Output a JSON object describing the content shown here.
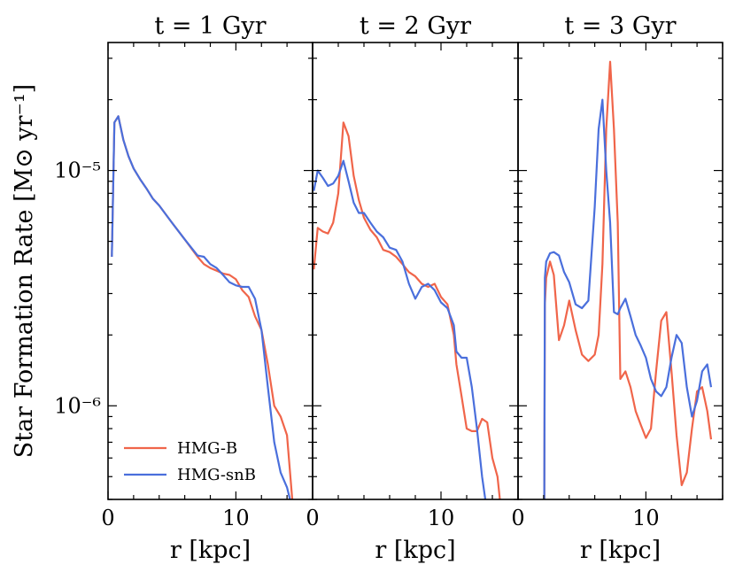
{
  "chart_data": {
    "type": "line",
    "ylabel": "Star Formation Rate [M⊙ yr⁻¹]",
    "ylim": [
      4e-07,
      3.5e-05
    ],
    "yscale": "log",
    "ytick_labels": [
      "10⁻⁶",
      "10⁻⁵"
    ],
    "series_styles": [
      {
        "name": "HMG-B",
        "color": "#f0654a"
      },
      {
        "name": "HMG-snB",
        "color": "#4a6fdc"
      }
    ],
    "legend": {
      "location": "lower-left",
      "entries": [
        "HMG-B",
        "HMG-snB"
      ]
    },
    "panels": [
      {
        "title": "t = 1 Gyr",
        "xlabel": "r [kpc]",
        "xlim": [
          0,
          16
        ],
        "xtick_labels": [
          "0",
          "10"
        ],
        "series": [
          {
            "name": "HMG-B",
            "x": [
              0.3,
              0.5,
              0.8,
              1.2,
              1.6,
              2,
              2.5,
              3,
              3.5,
              4,
              5,
              6,
              7,
              7.5,
              8,
              8.5,
              9,
              9.5,
              10,
              10.5,
              11,
              11.5,
              12,
              12.5,
              13,
              13.5,
              14,
              14.5
            ],
            "y": [
              4.3e-06,
              1.6e-05,
              1.7e-05,
              1.35e-05,
              1.15e-05,
              1.02e-05,
              9.2e-06,
              8.4e-06,
              7.6e-06,
              7.1e-06,
              6e-06,
              5.1e-06,
              4.3e-06,
              4e-06,
              3.85e-06,
              3.75e-06,
              3.65e-06,
              3.6e-06,
              3.45e-06,
              3.1e-06,
              2.9e-06,
              2.4e-06,
              2.1e-06,
              1.5e-06,
              1e-06,
              9e-07,
              7.5e-07,
              3.5e-07
            ]
          },
          {
            "name": "HMG-snB",
            "x": [
              0.3,
              0.5,
              0.8,
              1.2,
              1.6,
              2,
              2.5,
              3,
              3.5,
              4,
              5,
              6,
              7,
              7.5,
              8,
              8.5,
              9,
              9.5,
              10,
              10.5,
              11,
              11.5,
              12,
              12.5,
              13,
              13.5,
              14,
              14.5
            ],
            "y": [
              4.3e-06,
              1.6e-05,
              1.7e-05,
              1.35e-05,
              1.15e-05,
              1.02e-05,
              9.2e-06,
              8.4e-06,
              7.6e-06,
              7.1e-06,
              6e-06,
              5.1e-06,
              4.35e-06,
              4.3e-06,
              4e-06,
              3.85e-06,
              3.6e-06,
              3.35e-06,
              3.25e-06,
              3.2e-06,
              3.2e-06,
              2.85e-06,
              2.1e-06,
              1.2e-06,
              7e-07,
              5.2e-07,
              4.5e-07,
              3.5e-07
            ]
          }
        ]
      },
      {
        "title": "t = 2 Gyr",
        "xlabel": "r [kpc]",
        "xlim": [
          0,
          16
        ],
        "xtick_labels": [
          "0",
          "10"
        ],
        "series": [
          {
            "name": "HMG-B",
            "x": [
              0.1,
              0.4,
              0.8,
              1.2,
              1.6,
              2,
              2.4,
              2.8,
              3.2,
              3.6,
              4,
              4.5,
              5,
              5.5,
              6,
              6.5,
              7,
              7.5,
              8,
              8.5,
              9,
              9.5,
              10,
              10.5,
              11,
              11.2,
              11.6,
              12,
              12.4,
              12.8,
              13.2,
              13.6,
              14,
              14.4,
              14.7
            ],
            "y": [
              3.8e-06,
              5.7e-06,
              5.5e-06,
              5.4e-06,
              6e-06,
              8e-06,
              1.6e-05,
              1.4e-05,
              9.5e-06,
              7.5e-06,
              6.3e-06,
              5.6e-06,
              5.2e-06,
              4.6e-06,
              4.5e-06,
              4.3e-06,
              4e-06,
              3.7e-06,
              3.55e-06,
              3.3e-06,
              3.2e-06,
              3.3e-06,
              2.9e-06,
              2.7e-06,
              2e-06,
              1.5e-06,
              1.1e-06,
              8e-07,
              7.8e-07,
              7.8e-07,
              8.8e-07,
              8.5e-07,
              6e-07,
              5e-07,
              3.5e-07
            ]
          },
          {
            "name": "HMG-snB",
            "x": [
              0.1,
              0.4,
              0.8,
              1.2,
              1.6,
              2,
              2.4,
              2.8,
              3.2,
              3.6,
              4,
              4.5,
              5,
              5.5,
              6,
              6.5,
              7,
              7.5,
              8,
              8.5,
              9,
              9.5,
              10,
              10.5,
              11,
              11.2,
              11.6,
              12,
              12.4,
              12.8,
              13.2,
              13.6
            ],
            "y": [
              8.2e-06,
              1e-05,
              9.3e-06,
              8.6e-06,
              8.8e-06,
              9.5e-06,
              1.1e-05,
              9e-06,
              7.3e-06,
              6.6e-06,
              6.6e-06,
              6e-06,
              5.5e-06,
              5.2e-06,
              4.7e-06,
              4.6e-06,
              4.1e-06,
              3.3e-06,
              2.85e-06,
              3.2e-06,
              3.3e-06,
              3.1e-06,
              2.75e-06,
              2.6e-06,
              2.2e-06,
              1.7e-06,
              1.6e-06,
              1.6e-06,
              1.2e-06,
              8e-07,
              5e-07,
              3.5e-07
            ]
          }
        ]
      },
      {
        "title": "t = 3 Gyr",
        "xlabel": "r [kpc]",
        "xlim": [
          0,
          16
        ],
        "xtick_labels": [
          "0",
          "10"
        ],
        "series": [
          {
            "name": "HMG-B",
            "x": [
              2.05,
              2.1,
              2.2,
              2.5,
              2.8,
              3.2,
              3.6,
              4,
              4.5,
              5,
              5.5,
              6,
              6.3,
              6.6,
              6.9,
              7.2,
              7.5,
              7.8,
              8,
              8.4,
              8.8,
              9.2,
              9.6,
              10,
              10.4,
              10.8,
              11.2,
              11.6,
              12,
              12.4,
              12.8,
              13.2,
              13.6,
              14,
              14.4,
              14.8,
              15.1
            ],
            "y": [
              3.5e-07,
              2.7e-06,
              3.5e-06,
              4.1e-06,
              3.6e-06,
              1.9e-06,
              2.2e-06,
              2.8e-06,
              2.1e-06,
              1.65e-06,
              1.55e-06,
              1.65e-06,
              2e-06,
              4e-06,
              1.5e-05,
              2.9e-05,
              1.5e-05,
              6e-06,
              1.3e-06,
              1.4e-06,
              1.2e-06,
              9.5e-07,
              8.3e-07,
              7.3e-07,
              8e-07,
              1.4e-06,
              2.3e-06,
              2.5e-06,
              1.4e-06,
              7.5e-07,
              4.6e-07,
              5.2e-07,
              8e-07,
              1.15e-06,
              1.2e-06,
              9.5e-07,
              7.2e-07
            ]
          },
          {
            "name": "HMG-snB",
            "x": [
              2.05,
              2.1,
              2.2,
              2.5,
              2.8,
              3.2,
              3.6,
              4,
              4.5,
              5,
              5.5,
              6,
              6.3,
              6.6,
              6.9,
              7.2,
              7.5,
              7.8,
              8,
              8.4,
              8.8,
              9.2,
              9.6,
              10,
              10.4,
              10.8,
              11.2,
              11.6,
              12,
              12.4,
              12.8,
              13.2,
              13.6,
              14,
              14.4,
              14.8,
              15.1
            ],
            "y": [
              3.5e-07,
              3.5e-06,
              4.1e-06,
              4.45e-06,
              4.5e-06,
              4.35e-06,
              3.7e-06,
              3.35e-06,
              2.7e-06,
              2.6e-06,
              2.8e-06,
              7e-06,
              1.5e-05,
              2e-05,
              1e-05,
              6e-06,
              2.5e-06,
              2.45e-06,
              2.6e-06,
              2.85e-06,
              2.4e-06,
              2e-06,
              1.8e-06,
              1.6e-06,
              1.3e-06,
              1.15e-06,
              1.1e-06,
              1.2e-06,
              1.6e-06,
              2e-06,
              1.85e-06,
              1.2e-06,
              9e-07,
              1.05e-06,
              1.4e-06,
              1.5e-06,
              1.2e-06
            ]
          }
        ]
      }
    ]
  }
}
